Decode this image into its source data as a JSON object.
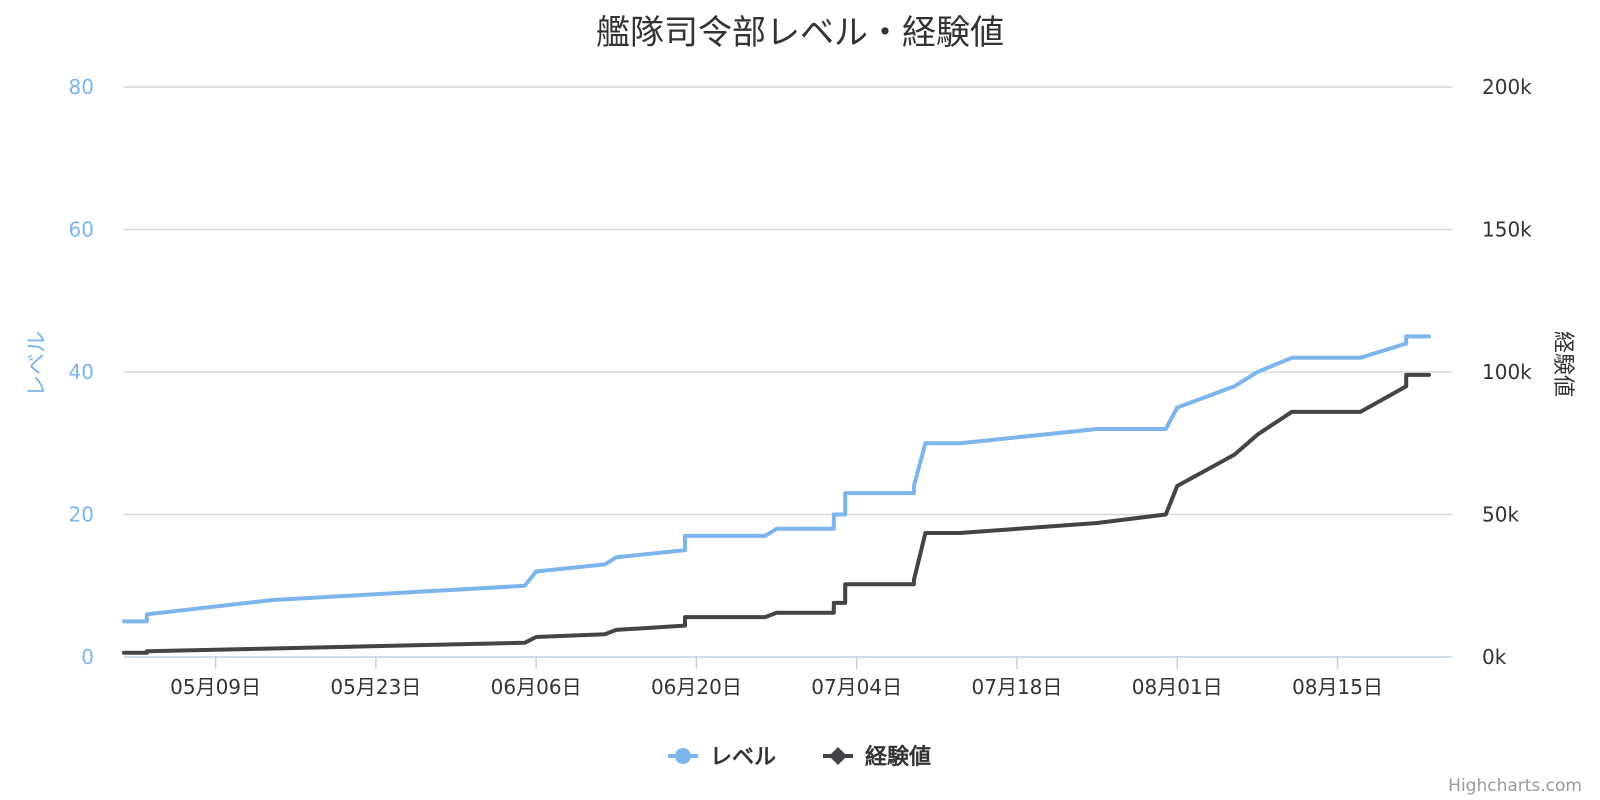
{
  "chart_data": {
    "type": "line",
    "title": "艦隊司令部レベル・経験値",
    "credits": "Highcharts.com",
    "x_ticks": [
      "05月09日",
      "05月23日",
      "06月06日",
      "06月20日",
      "07月04日",
      "07月18日",
      "08月01日",
      "08月15日"
    ],
    "x_range": [
      "2016-05-01",
      "2016-08-25"
    ],
    "y_left": {
      "title": "レベル",
      "ticks": [
        "0",
        "20",
        "40",
        "60",
        "80"
      ],
      "range": [
        0,
        80
      ],
      "color": "#7cb5ec"
    },
    "y_right": {
      "title": "経験値",
      "ticks": [
        "0k",
        "50k",
        "100k",
        "150k",
        "200k"
      ],
      "range": [
        0,
        200000
      ],
      "color": "#434348"
    },
    "grid": true,
    "legend_position": "bottom-center",
    "series": [
      {
        "name": "レベル",
        "axis": "left",
        "color": "#7cb5ec",
        "marker": "circle",
        "x": [
          "2016-05-01",
          "2016-05-02",
          "2016-05-03",
          "2016-05-03",
          "2016-05-14",
          "2016-06-05",
          "2016-06-06",
          "2016-06-12",
          "2016-06-13",
          "2016-06-19",
          "2016-06-19",
          "2016-06-26",
          "2016-06-27",
          "2016-07-02",
          "2016-07-02",
          "2016-07-03",
          "2016-07-03",
          "2016-07-09",
          "2016-07-09",
          "2016-07-10",
          "2016-07-13",
          "2016-07-25",
          "2016-07-31",
          "2016-08-01",
          "2016-08-06",
          "2016-08-08",
          "2016-08-11",
          "2016-08-17",
          "2016-08-21",
          "2016-08-21",
          "2016-08-23"
        ],
        "y": [
          5,
          5,
          5,
          6,
          8,
          10,
          12,
          13,
          14,
          15,
          17,
          17,
          18,
          18,
          20,
          20,
          23,
          23,
          24,
          30,
          30,
          32,
          32,
          35,
          38,
          40,
          42,
          42,
          44,
          45,
          45
        ]
      },
      {
        "name": "経験値",
        "axis": "right",
        "color": "#434348",
        "marker": "diamond",
        "x": [
          "2016-05-01",
          "2016-05-02",
          "2016-05-03",
          "2016-05-03",
          "2016-05-14",
          "2016-06-05",
          "2016-06-06",
          "2016-06-12",
          "2016-06-13",
          "2016-06-19",
          "2016-06-19",
          "2016-06-26",
          "2016-06-27",
          "2016-07-02",
          "2016-07-02",
          "2016-07-03",
          "2016-07-03",
          "2016-07-09",
          "2016-07-09",
          "2016-07-10",
          "2016-07-13",
          "2016-07-25",
          "2016-07-31",
          "2016-08-01",
          "2016-08-06",
          "2016-08-08",
          "2016-08-11",
          "2016-08-17",
          "2016-08-21",
          "2016-08-21",
          "2016-08-23"
        ],
        "y": [
          1500,
          1500,
          1500,
          2000,
          3000,
          5000,
          7000,
          8000,
          9500,
          11000,
          14000,
          14000,
          15500,
          15500,
          19000,
          19000,
          25500,
          25500,
          27000,
          43500,
          43500,
          47000,
          50000,
          60000,
          71000,
          78000,
          86000,
          86000,
          95000,
          99000,
          99000
        ]
      }
    ]
  }
}
